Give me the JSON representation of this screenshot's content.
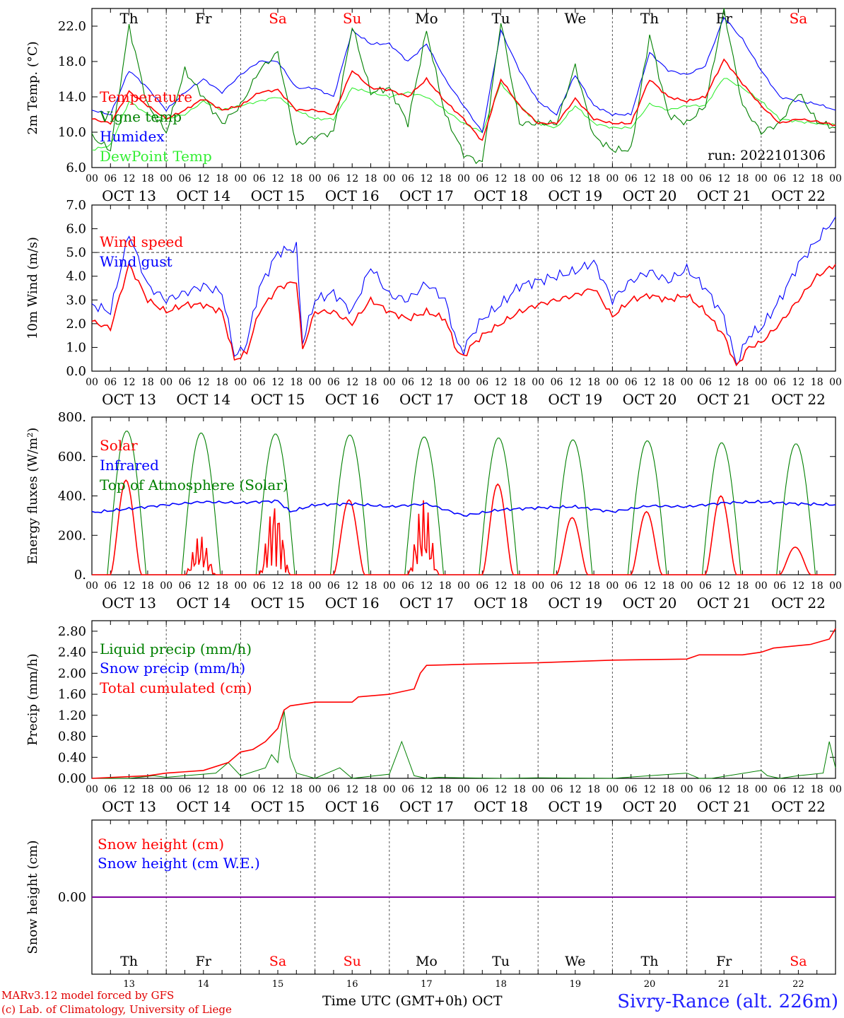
{
  "days": [
    "Th",
    "Fr",
    "Sa",
    "Su",
    "Mo",
    "Tu",
    "We",
    "Th",
    "Fr",
    "Sa"
  ],
  "weekend_days": [
    2,
    3,
    9
  ],
  "dates": [
    "OCT 13",
    "OCT 14",
    "OCT 15",
    "OCT 16",
    "OCT 17",
    "OCT 18",
    "OCT 19",
    "OCT 20",
    "OCT 21",
    "OCT 22"
  ],
  "hour_ticks": [
    "00",
    "06",
    "12",
    "18"
  ],
  "bottom_day_numbers": [
    "13",
    "14",
    "15",
    "16",
    "17",
    "18",
    "19",
    "20",
    "21",
    "22"
  ],
  "run_label": "run: 2022101306",
  "footer": {
    "model": "MARv3.12 model forced by GFS",
    "lab": "(c) Lab. of Climatology, University of Liege",
    "time_axis": "Time UTC (GMT+0h) OCT",
    "station": "Sivry-Rance (alt. 226m)"
  },
  "colors": {
    "red": "#ff0000",
    "blue": "#0000ff",
    "green": "#008000",
    "lightgreen": "#33ee33",
    "purple": "#8000a0",
    "station_blue": "#2020ff"
  },
  "chart_data": [
    {
      "type": "line",
      "ylabel": "2m Temp. (°C)",
      "ylim": [
        6,
        24
      ],
      "yticks": [
        "6.0",
        "10.0",
        "14.0",
        "18.0",
        "22.0"
      ],
      "x_unit": "hours since Oct 13 00 UTC",
      "series": [
        {
          "name": "Temperature",
          "color": "#ff0000",
          "x": [
            0,
            6,
            12,
            18,
            24,
            30,
            36,
            42,
            48,
            54,
            60,
            66,
            72,
            78,
            84,
            90,
            96,
            102,
            108,
            114,
            120,
            126,
            132,
            138,
            144,
            150,
            156,
            162,
            168,
            174,
            180,
            186,
            192,
            198,
            204,
            210,
            216,
            222,
            228,
            234,
            240
          ],
          "y": [
            11.5,
            11,
            14.6,
            13,
            11.5,
            12.5,
            13.8,
            12.5,
            13,
            14.5,
            14.8,
            12.5,
            12.5,
            12,
            17,
            15,
            14.8,
            14,
            16,
            13.5,
            11.5,
            9,
            16,
            13,
            11,
            11,
            13.8,
            11.5,
            11,
            11,
            16,
            14,
            13.5,
            14,
            18.2,
            15.5,
            13,
            11,
            11.5,
            11.2,
            10.8
          ]
        },
        {
          "name": "Vigne temp",
          "color": "#008000",
          "x": [
            0,
            6,
            12,
            18,
            24,
            30,
            36,
            42,
            48,
            54,
            60,
            66,
            72,
            78,
            84,
            90,
            96,
            102,
            108,
            114,
            120,
            126,
            132,
            138,
            144,
            150,
            156,
            162,
            168,
            174,
            180,
            186,
            192,
            198,
            204,
            210,
            216,
            222,
            228,
            234,
            240
          ],
          "y": [
            9.5,
            8,
            22,
            13,
            10,
            17,
            14,
            11,
            13,
            17,
            19,
            8.5,
            9.5,
            10,
            22,
            14.5,
            15,
            11,
            21.5,
            12,
            7.5,
            6.5,
            22.5,
            11,
            11,
            11,
            17.5,
            9.5,
            8,
            8,
            21,
            12,
            11,
            13,
            23.8,
            13,
            10,
            11,
            14.5,
            11.2,
            10.5
          ]
        },
        {
          "name": "Humidex",
          "color": "#0000ff",
          "x": [
            0,
            6,
            12,
            18,
            24,
            30,
            36,
            42,
            48,
            54,
            60,
            66,
            72,
            78,
            84,
            90,
            96,
            102,
            108,
            114,
            120,
            126,
            132,
            138,
            144,
            150,
            156,
            162,
            168,
            174,
            180,
            186,
            192,
            198,
            204,
            210,
            216,
            222,
            228,
            234,
            240
          ],
          "y": [
            12.5,
            12,
            17,
            15,
            12.5,
            14.5,
            16,
            14.5,
            16.5,
            18,
            18,
            15,
            15,
            14,
            21.5,
            20,
            20,
            18,
            20,
            16,
            13,
            10,
            21.5,
            17,
            13.5,
            12,
            16.5,
            13,
            12,
            12,
            19,
            17,
            16.5,
            17.5,
            23,
            20.5,
            17,
            14,
            13.5,
            13.2,
            12.5
          ]
        },
        {
          "name": "DewPoint Temp",
          "color": "#33ee33",
          "x": [
            0,
            6,
            12,
            18,
            24,
            30,
            36,
            42,
            48,
            54,
            60,
            66,
            72,
            78,
            84,
            90,
            96,
            102,
            108,
            114,
            120,
            126,
            132,
            138,
            144,
            150,
            156,
            162,
            168,
            174,
            180,
            186,
            192,
            198,
            204,
            210,
            216,
            222,
            228,
            234,
            240
          ],
          "y": [
            8,
            8.5,
            13.5,
            12,
            11.5,
            12,
            13.5,
            12.5,
            13,
            13.5,
            14,
            12.5,
            11.5,
            11.5,
            15,
            14.5,
            14,
            14.5,
            14,
            12.5,
            11,
            10,
            15.5,
            13,
            11,
            10.5,
            13,
            11,
            10.5,
            10.5,
            13.2,
            12.5,
            13,
            13,
            16.2,
            15,
            13.5,
            11.5,
            11.2,
            11,
            10.8
          ]
        }
      ]
    },
    {
      "type": "line",
      "ylabel": "10m Wind (m/s)",
      "ylim": [
        0,
        7
      ],
      "yticks": [
        "0.0",
        "1.0",
        "2.0",
        "3.0",
        "4.0",
        "5.0",
        "6.0",
        "7.0"
      ],
      "reference_line": 5.0,
      "series": [
        {
          "name": "Wind speed",
          "color": "#ff0000",
          "x": [
            0,
            6,
            12,
            18,
            24,
            30,
            36,
            42,
            46,
            48,
            50,
            54,
            60,
            66,
            68,
            72,
            78,
            84,
            90,
            96,
            102,
            108,
            114,
            118,
            120,
            122,
            126,
            132,
            138,
            144,
            150,
            156,
            162,
            168,
            174,
            180,
            186,
            192,
            198,
            204,
            208,
            212,
            216,
            222,
            228,
            234,
            240
          ],
          "y": [
            2.1,
            1.8,
            4.5,
            3.0,
            2.5,
            2.8,
            2.8,
            2.5,
            0.5,
            0.6,
            0.8,
            2.5,
            3.5,
            3.8,
            0.9,
            2.5,
            2.5,
            2.0,
            3.0,
            2.5,
            2.2,
            2.5,
            2.2,
            0.8,
            0.6,
            1.0,
            1.5,
            2.0,
            2.5,
            2.8,
            3.0,
            3.2,
            3.5,
            2.3,
            3.0,
            3.2,
            3.0,
            3.2,
            2.5,
            1.5,
            0.2,
            1.0,
            1.2,
            2.0,
            3.0,
            4.0,
            4.5
          ]
        },
        {
          "name": "Wind gust",
          "color": "#0000ff",
          "x": [
            0,
            6,
            12,
            18,
            24,
            30,
            36,
            42,
            46,
            48,
            50,
            54,
            60,
            66,
            68,
            72,
            78,
            84,
            90,
            96,
            102,
            108,
            114,
            118,
            120,
            122,
            126,
            132,
            138,
            144,
            150,
            156,
            162,
            168,
            174,
            180,
            186,
            192,
            198,
            204,
            208,
            212,
            216,
            222,
            228,
            234,
            240
          ],
          "y": [
            2.8,
            2.5,
            5.8,
            3.6,
            3.0,
            3.3,
            3.6,
            3.3,
            0.7,
            0.8,
            1.2,
            3.5,
            5.0,
            5.2,
            1.2,
            3.0,
            3.3,
            2.5,
            4.4,
            3.2,
            3.0,
            3.7,
            3.0,
            1.1,
            0.9,
            1.4,
            2.2,
            2.8,
            3.6,
            3.8,
            4.0,
            4.2,
            4.6,
            3.0,
            3.8,
            4.2,
            3.8,
            4.3,
            3.5,
            2.3,
            0.3,
            1.5,
            1.8,
            3.0,
            4.5,
            5.5,
            6.5
          ]
        }
      ]
    },
    {
      "type": "line",
      "ylabel": "Energy fluxes (W/m²)",
      "ylim": [
        0,
        800
      ],
      "yticks": [
        "0.",
        "200.",
        "400.",
        "600.",
        "800."
      ],
      "series": [
        {
          "name": "Solar",
          "color": "#ff0000",
          "day_peaks": [
            480,
            200,
            390,
            380,
            380,
            460,
            290,
            320,
            400,
            140
          ]
        },
        {
          "name": "Infrared",
          "color": "#0000ff",
          "x": [
            0,
            12,
            24,
            36,
            48,
            60,
            64,
            72,
            84,
            96,
            108,
            120,
            132,
            144,
            156,
            168,
            180,
            192,
            204,
            216,
            228,
            240
          ],
          "y": [
            315,
            335,
            355,
            370,
            365,
            375,
            320,
            355,
            360,
            345,
            360,
            300,
            330,
            340,
            345,
            320,
            350,
            345,
            365,
            370,
            360,
            355
          ]
        },
        {
          "name": "Top of Atmosphere (Solar)",
          "color": "#008000",
          "day_peaks": [
            730,
            720,
            715,
            710,
            700,
            695,
            685,
            680,
            670,
            665
          ]
        }
      ]
    },
    {
      "type": "line",
      "ylabel": "Precip (mm/h)",
      "ylim": [
        0,
        3.0
      ],
      "yticks": [
        "0.00",
        "0.40",
        "0.80",
        "1.20",
        "1.60",
        "2.00",
        "2.40",
        "2.80"
      ],
      "series": [
        {
          "name": "Liquid precip (mm/h)",
          "color": "#008000",
          "x": [
            0,
            12,
            20,
            24,
            36,
            40,
            44,
            48,
            56,
            58,
            60,
            62,
            64,
            66,
            72,
            80,
            84,
            96,
            100,
            104,
            108,
            112,
            120,
            132,
            144,
            168,
            192,
            196,
            200,
            216,
            218,
            222,
            228,
            236,
            238,
            240
          ],
          "y": [
            0,
            0,
            0.05,
            0.02,
            0.08,
            0.1,
            0.3,
            0.05,
            0.2,
            0.45,
            0.3,
            1.3,
            0.4,
            0.1,
            0,
            0.2,
            0,
            0.08,
            0.7,
            0.05,
            0,
            0.02,
            0.01,
            0,
            0.01,
            0,
            0.1,
            0,
            0,
            0.15,
            0.05,
            0,
            0.05,
            0.1,
            0.7,
            0.2
          ]
        },
        {
          "name": "Snow precip (mm/h)",
          "color": "#0000ff",
          "x": [
            0,
            240
          ],
          "y": [
            0,
            0
          ]
        },
        {
          "name": "Total cumulated (cm)",
          "color": "#ff0000",
          "x": [
            0,
            18,
            24,
            36,
            44,
            48,
            52,
            56,
            60,
            62,
            64,
            72,
            84,
            86,
            96,
            100,
            104,
            106,
            108,
            120,
            144,
            168,
            192,
            196,
            210,
            216,
            220,
            232,
            238,
            240
          ],
          "y": [
            0,
            0.05,
            0.1,
            0.15,
            0.3,
            0.5,
            0.55,
            0.7,
            0.95,
            1.3,
            1.38,
            1.45,
            1.45,
            1.55,
            1.6,
            1.65,
            1.7,
            2.0,
            2.15,
            2.17,
            2.2,
            2.25,
            2.27,
            2.35,
            2.35,
            2.4,
            2.48,
            2.55,
            2.65,
            2.85
          ]
        }
      ]
    },
    {
      "type": "line",
      "ylabel": "Snow height (cm)",
      "yticks": [
        "0.00"
      ],
      "series": [
        {
          "name": "Snow height (cm)",
          "color": "#ff0000",
          "x": [
            0,
            240
          ],
          "y": [
            0,
            0
          ]
        },
        {
          "name": "Snow height (cm W.E.)",
          "color": "#0000ff",
          "x": [
            0,
            240
          ],
          "y": [
            0,
            0
          ]
        }
      ]
    }
  ]
}
